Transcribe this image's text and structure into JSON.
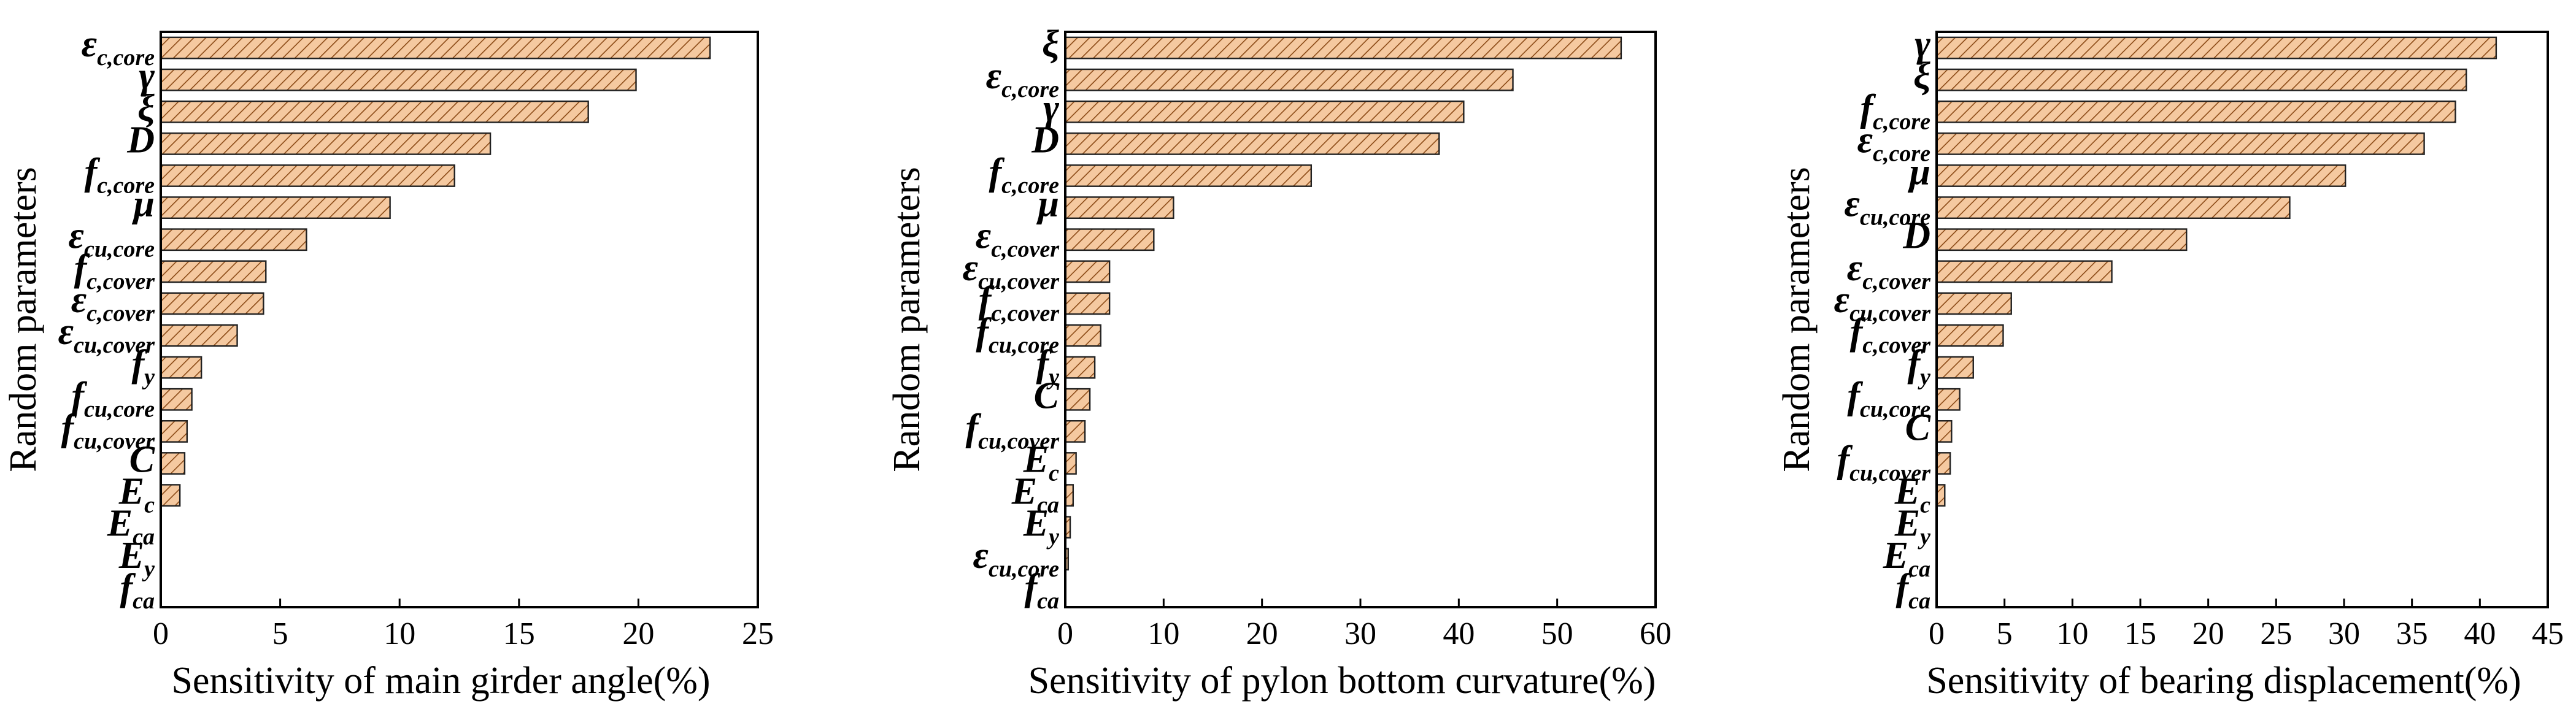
{
  "figure": {
    "bar_fill": "#f5c9a0",
    "bar_hatch": "#8b4a16",
    "bar_stroke": "#222222"
  },
  "chart_data": [
    {
      "type": "bar",
      "orientation": "horizontal",
      "xlabel": "Sensitivity of main girder angle(%)",
      "ylabel": "Random parameters",
      "xlim": [
        0,
        25
      ],
      "xticks": [
        "0",
        "5",
        "10",
        "15",
        "20",
        "25"
      ],
      "categories": [
        {
          "base": "ε",
          "sub": "c,core"
        },
        {
          "base": "γ",
          "sub": ""
        },
        {
          "base": "ξ",
          "sub": ""
        },
        {
          "base": "D",
          "sub": ""
        },
        {
          "base": "f",
          "sub": "c,core"
        },
        {
          "base": "μ",
          "sub": ""
        },
        {
          "base": "ε",
          "sub": "cu,core"
        },
        {
          "base": "f",
          "sub": "c,cover"
        },
        {
          "base": "ε",
          "sub": "c,cover"
        },
        {
          "base": "ε",
          "sub": "cu,cover"
        },
        {
          "base": "f",
          "sub": "y"
        },
        {
          "base": "f",
          "sub": "cu,core"
        },
        {
          "base": "f",
          "sub": "cu,cover"
        },
        {
          "base": "C",
          "sub": ""
        },
        {
          "base": "E",
          "sub": "c"
        },
        {
          "base": "E",
          "sub": "ca"
        },
        {
          "base": "E",
          "sub": "y"
        },
        {
          "base": "f",
          "sub": "ca"
        }
      ],
      "values": [
        23.0,
        19.9,
        17.9,
        13.8,
        12.3,
        9.6,
        6.1,
        4.4,
        4.3,
        3.2,
        1.7,
        1.3,
        1.1,
        1.0,
        0.8,
        0.0,
        0.0,
        0.0
      ],
      "grid": false,
      "legend": "none"
    },
    {
      "type": "bar",
      "orientation": "horizontal",
      "xlabel": "Sensitivity of pylon bottom curvature(%)",
      "ylabel": "Random parameters",
      "xlim": [
        0,
        60
      ],
      "xticks": [
        "0",
        "10",
        "20",
        "30",
        "40",
        "50",
        "60"
      ],
      "categories": [
        {
          "base": "ξ",
          "sub": ""
        },
        {
          "base": "ε",
          "sub": "c,core"
        },
        {
          "base": "γ",
          "sub": ""
        },
        {
          "base": "D",
          "sub": ""
        },
        {
          "base": "f",
          "sub": "c,core"
        },
        {
          "base": "μ",
          "sub": ""
        },
        {
          "base": "ε",
          "sub": "c,cover"
        },
        {
          "base": "ε",
          "sub": "cu,cover"
        },
        {
          "base": "f",
          "sub": "c,cover"
        },
        {
          "base": "f",
          "sub": "cu,core"
        },
        {
          "base": "f",
          "sub": "y"
        },
        {
          "base": "C",
          "sub": ""
        },
        {
          "base": "f",
          "sub": "cu,cover"
        },
        {
          "base": "E",
          "sub": "c"
        },
        {
          "base": "E",
          "sub": "ca"
        },
        {
          "base": "E",
          "sub": "y"
        },
        {
          "base": "ε",
          "sub": "cu,core"
        },
        {
          "base": "f",
          "sub": "ca"
        }
      ],
      "values": [
        56.5,
        45.5,
        40.5,
        38.0,
        25.0,
        11.0,
        9.0,
        4.5,
        4.5,
        3.6,
        3.0,
        2.5,
        2.0,
        1.1,
        0.8,
        0.5,
        0.3,
        0.0
      ],
      "grid": false,
      "legend": "none"
    },
    {
      "type": "bar",
      "orientation": "horizontal",
      "xlabel": "Sensitivity of bearing displacement(%)",
      "ylabel": "Random parameters",
      "xlim": [
        0,
        45
      ],
      "xticks": [
        "0",
        "5",
        "10",
        "15",
        "20",
        "25",
        "30",
        "35",
        "40",
        "45"
      ],
      "categories": [
        {
          "base": "γ",
          "sub": ""
        },
        {
          "base": "ξ",
          "sub": ""
        },
        {
          "base": "f",
          "sub": "c,core"
        },
        {
          "base": "ε",
          "sub": "c,core"
        },
        {
          "base": "μ",
          "sub": ""
        },
        {
          "base": "ε",
          "sub": "cu,core"
        },
        {
          "base": "D",
          "sub": ""
        },
        {
          "base": "ε",
          "sub": "c,cover"
        },
        {
          "base": "ε",
          "sub": "cu,cover"
        },
        {
          "base": "f",
          "sub": "c,cover"
        },
        {
          "base": "f",
          "sub": "y"
        },
        {
          "base": "f",
          "sub": "cu,core"
        },
        {
          "base": "C",
          "sub": ""
        },
        {
          "base": "f",
          "sub": "cu,cover"
        },
        {
          "base": "E",
          "sub": "c"
        },
        {
          "base": "E",
          "sub": "y"
        },
        {
          "base": "E",
          "sub": "ca"
        },
        {
          "base": "f",
          "sub": "ca"
        }
      ],
      "values": [
        41.2,
        39.0,
        38.2,
        35.9,
        30.1,
        26.0,
        18.4,
        12.9,
        5.5,
        4.9,
        2.7,
        1.7,
        1.1,
        1.0,
        0.6,
        0.0,
        0.0,
        0.0
      ],
      "grid": false,
      "legend": "none"
    }
  ]
}
